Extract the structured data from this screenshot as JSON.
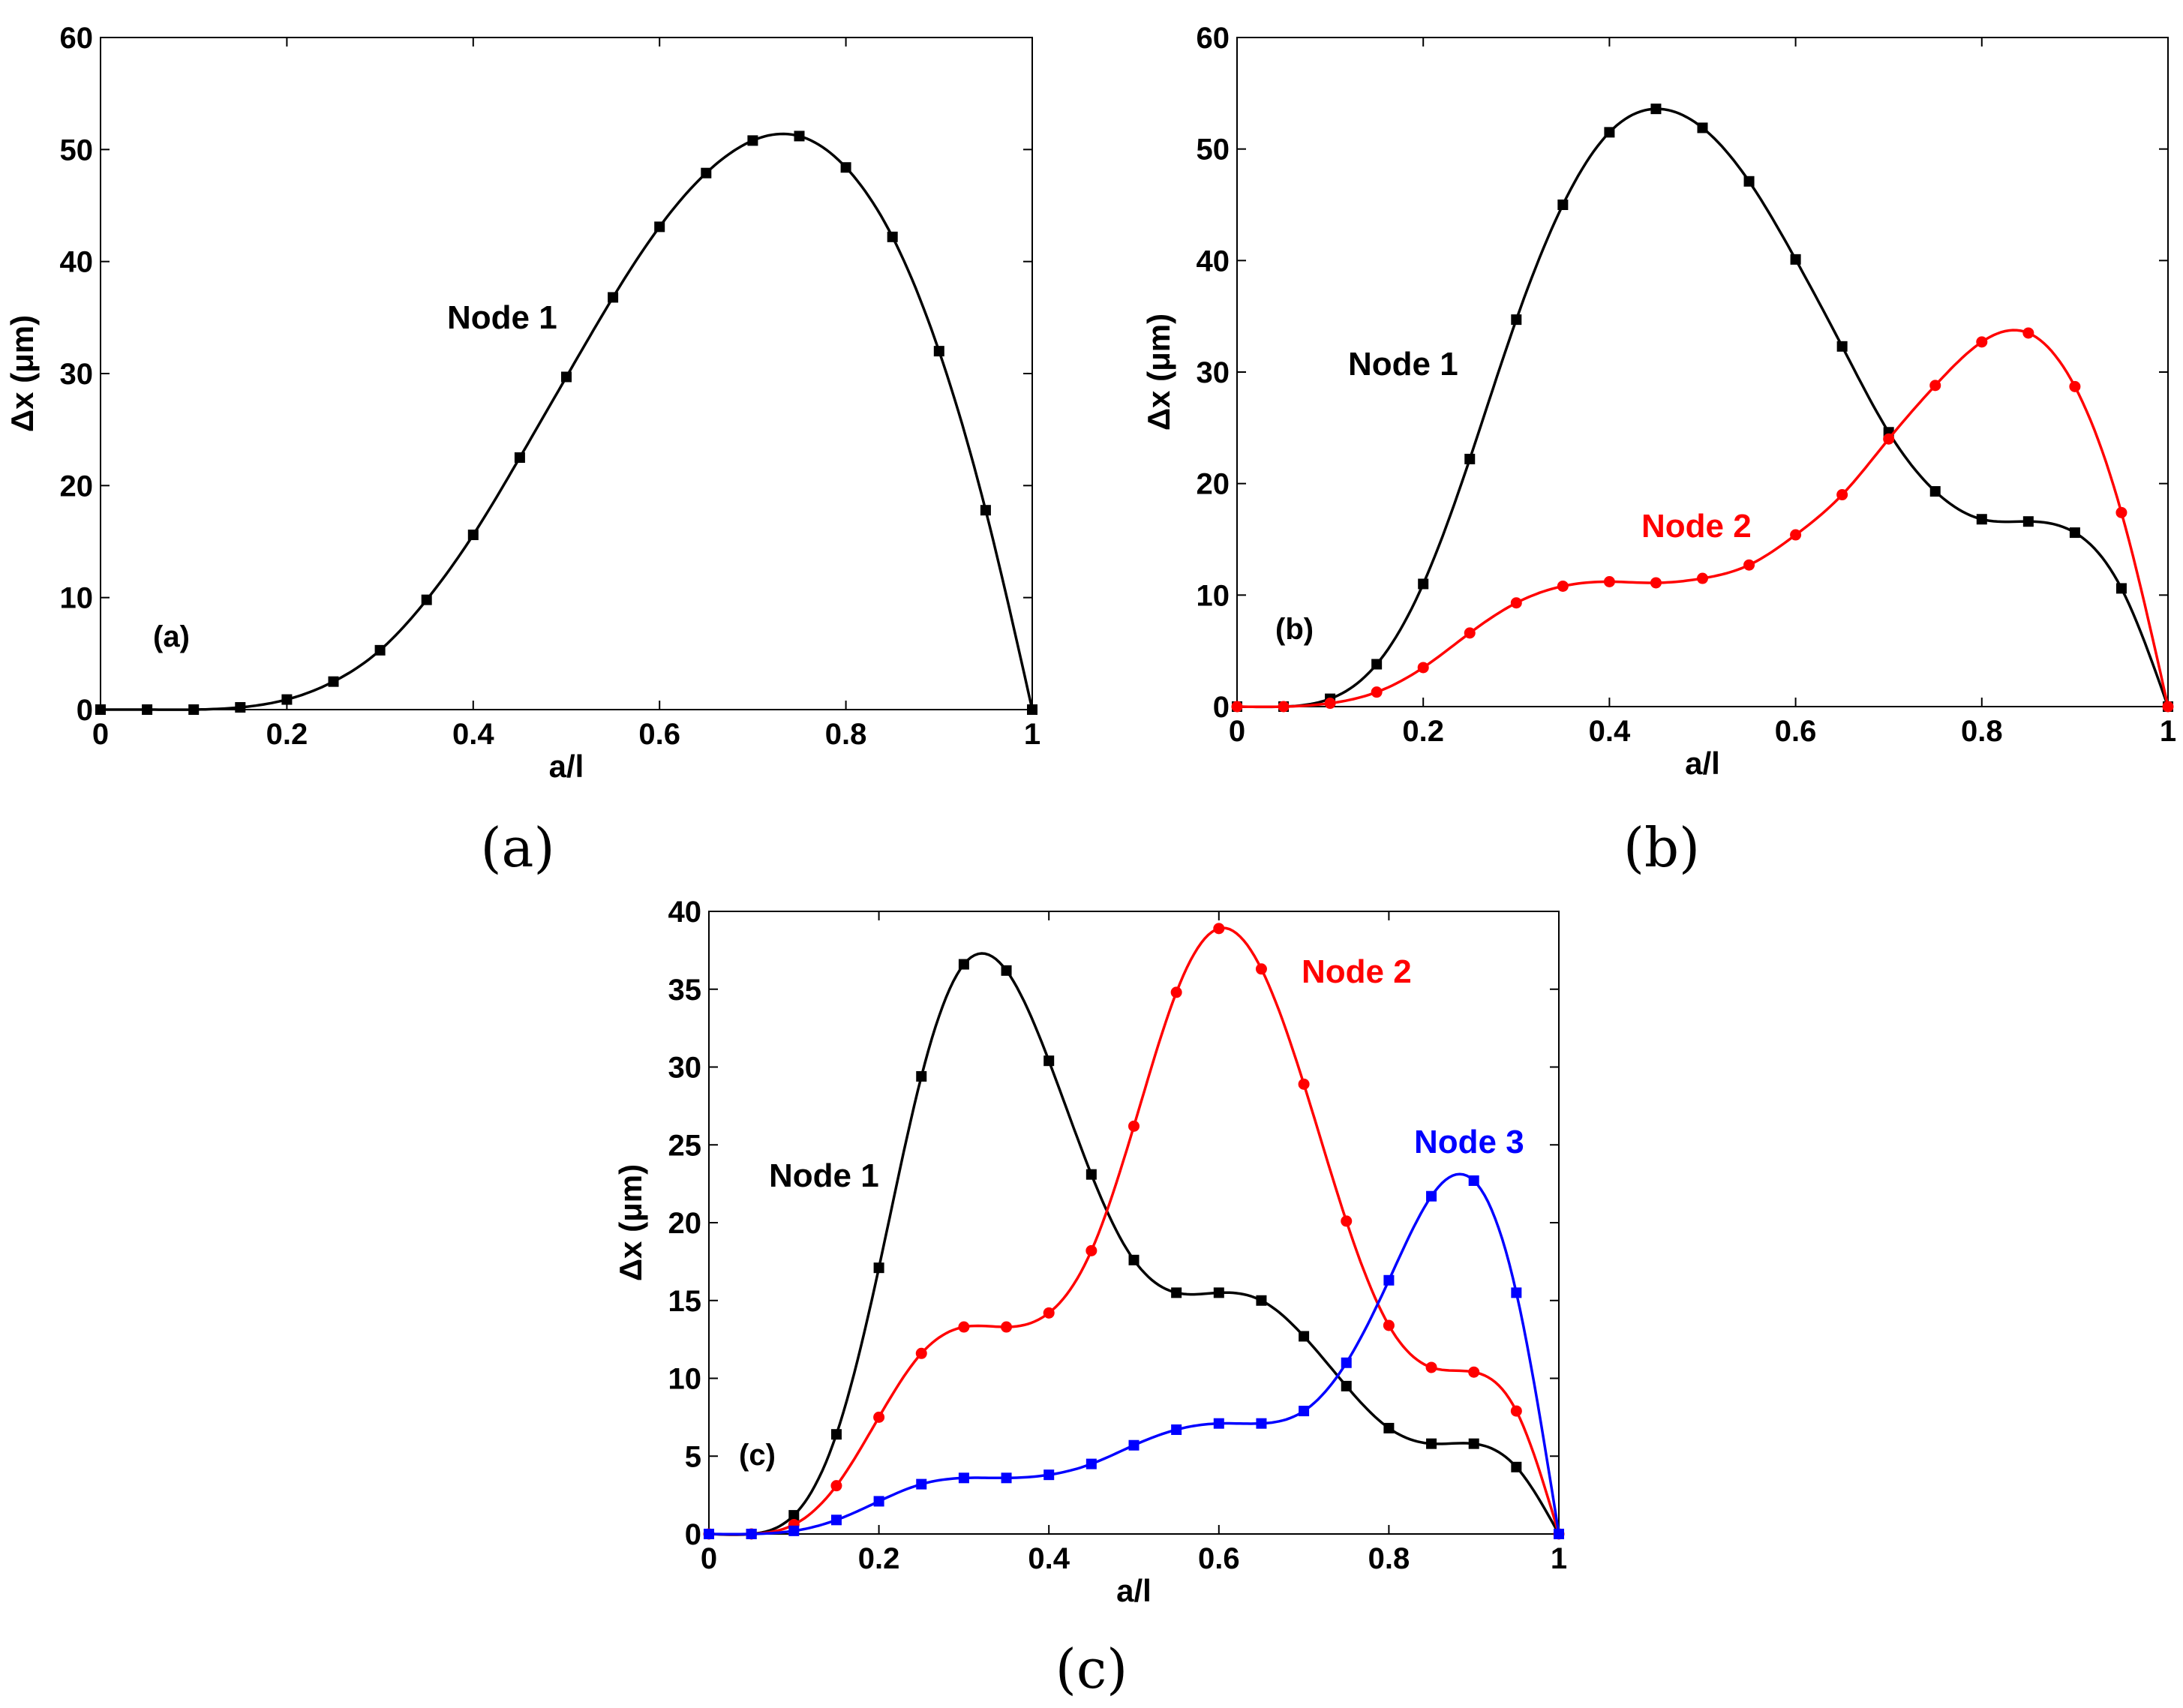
{
  "chart_data": [
    {
      "type": "line",
      "panel_tag": "(a)",
      "caption": "(a)",
      "xlabel": "a/l",
      "ylabel": "Δx (μm)",
      "xlim": [
        0,
        1
      ],
      "ylim": [
        0,
        60
      ],
      "xticks": [
        0,
        0.2,
        0.4,
        0.6,
        0.8,
        1
      ],
      "xtick_labels": [
        "0",
        "0.2",
        "0.4",
        "0.6",
        "0.8",
        "1"
      ],
      "yticks": [
        0,
        10,
        20,
        30,
        40,
        50,
        60
      ],
      "ytick_labels": [
        "0",
        "10",
        "20",
        "30",
        "40",
        "50",
        "60"
      ],
      "x": [
        0,
        0.05,
        0.1,
        0.15,
        0.2,
        0.25,
        0.3,
        0.35,
        0.4,
        0.45,
        0.5,
        0.55,
        0.6,
        0.65,
        0.7,
        0.75,
        0.8,
        0.85,
        0.9,
        0.95,
        1
      ],
      "series": [
        {
          "name": "Node 1",
          "label": "Node 1",
          "color": "#000000",
          "marker": "square",
          "values": [
            0,
            0,
            0,
            0.2,
            0.9,
            2.5,
            5.3,
            9.8,
            15.6,
            22.5,
            29.7,
            36.8,
            43.1,
            47.9,
            50.8,
            51.2,
            48.4,
            42.2,
            32.0,
            17.8,
            0
          ]
        }
      ]
    },
    {
      "type": "line",
      "panel_tag": "(b)",
      "caption": "(b)",
      "xlabel": "a/l",
      "ylabel": "Δx (μm)",
      "xlim": [
        0,
        1
      ],
      "ylim": [
        0,
        60
      ],
      "xticks": [
        0,
        0.2,
        0.4,
        0.6,
        0.8,
        1
      ],
      "xtick_labels": [
        "0",
        "0.2",
        "0.4",
        "0.6",
        "0.8",
        "1"
      ],
      "yticks": [
        0,
        10,
        20,
        30,
        40,
        50,
        60
      ],
      "ytick_labels": [
        "0",
        "10",
        "20",
        "30",
        "40",
        "50",
        "60"
      ],
      "x": [
        0,
        0.05,
        0.1,
        0.15,
        0.2,
        0.25,
        0.3,
        0.35,
        0.4,
        0.45,
        0.5,
        0.55,
        0.6,
        0.65,
        0.7,
        0.75,
        0.8,
        0.85,
        0.9,
        0.95,
        1
      ],
      "series": [
        {
          "name": "Node 1",
          "label": "Node 1",
          "color": "#000000",
          "marker": "square",
          "values": [
            0,
            0,
            0.7,
            3.8,
            11.0,
            22.2,
            34.7,
            45.0,
            51.5,
            53.6,
            51.9,
            47.1,
            40.1,
            32.3,
            24.6,
            19.3,
            16.8,
            16.6,
            15.6,
            10.6,
            0
          ]
        },
        {
          "name": "Node 2",
          "label": "Node 2",
          "color": "#ff0000",
          "marker": "circle",
          "values": [
            0,
            0,
            0.3,
            1.3,
            3.5,
            6.6,
            9.3,
            10.8,
            11.2,
            11.1,
            11.5,
            12.7,
            15.4,
            19.0,
            24.0,
            28.8,
            32.7,
            33.5,
            28.7,
            17.4,
            0
          ]
        }
      ]
    },
    {
      "type": "line",
      "panel_tag": "(c)",
      "caption": "(c)",
      "xlabel": "a/l",
      "ylabel": "Δx (μm)",
      "xlim": [
        0,
        1
      ],
      "ylim": [
        0,
        40
      ],
      "xticks": [
        0,
        0.2,
        0.4,
        0.6,
        0.8,
        1
      ],
      "xtick_labels": [
        "0",
        "0.2",
        "0.4",
        "0.6",
        "0.8",
        "1"
      ],
      "yticks": [
        0,
        5,
        10,
        15,
        20,
        25,
        30,
        35,
        40
      ],
      "ytick_labels": [
        "0",
        "5",
        "10",
        "15",
        "20",
        "25",
        "30",
        "35",
        "40"
      ],
      "x": [
        0,
        0.05,
        0.1,
        0.15,
        0.2,
        0.25,
        0.3,
        0.35,
        0.4,
        0.45,
        0.5,
        0.55,
        0.6,
        0.65,
        0.7,
        0.75,
        0.8,
        0.85,
        0.9,
        0.95,
        1
      ],
      "series": [
        {
          "name": "Node 1",
          "label": "Node 1",
          "color": "#000000",
          "marker": "square",
          "values": [
            0,
            0,
            1.2,
            6.4,
            17.1,
            29.4,
            36.6,
            36.2,
            30.4,
            23.1,
            17.6,
            15.5,
            15.5,
            15.0,
            12.7,
            9.5,
            6.8,
            5.8,
            5.8,
            4.3,
            0
          ]
        },
        {
          "name": "Node 2",
          "label": "Node 2",
          "color": "#ff0000",
          "marker": "circle",
          "values": [
            0,
            0,
            0.6,
            3.1,
            7.5,
            11.6,
            13.3,
            13.3,
            14.2,
            18.2,
            26.2,
            34.8,
            38.9,
            36.3,
            28.9,
            20.1,
            13.4,
            10.7,
            10.4,
            7.9,
            0
          ]
        },
        {
          "name": "Node 3",
          "label": "Node 3",
          "color": "#0000ff",
          "marker": "square",
          "values": [
            0,
            0,
            0.2,
            0.9,
            2.1,
            3.2,
            3.6,
            3.6,
            3.8,
            4.5,
            5.7,
            6.7,
            7.1,
            7.1,
            7.9,
            11.0,
            16.3,
            21.7,
            22.7,
            15.5,
            0
          ]
        }
      ]
    }
  ]
}
